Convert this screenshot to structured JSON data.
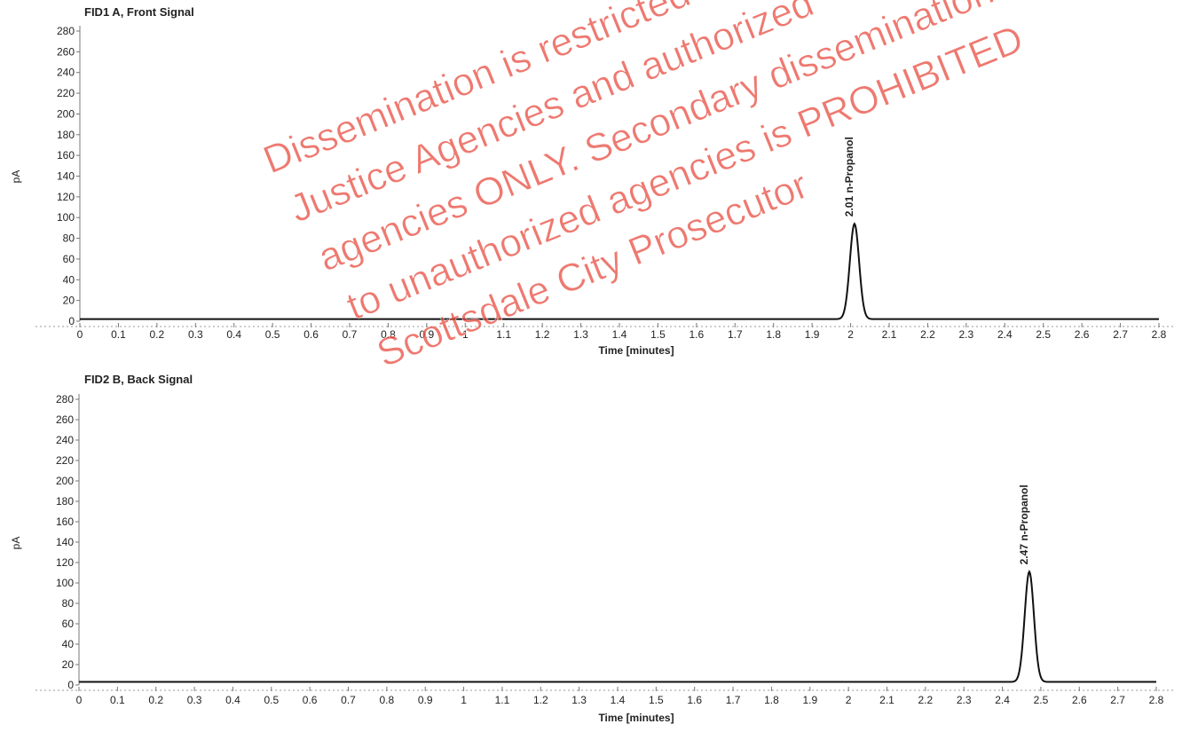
{
  "chart_data": [
    {
      "type": "line",
      "title": "FID1 A, Front Signal",
      "xlabel": "Time [minutes]",
      "ylabel": "pA",
      "xlim": [
        0,
        2.8
      ],
      "ylim": [
        0,
        280
      ],
      "xticks": [
        "0",
        "0.1",
        "0.2",
        "0.3",
        "0.4",
        "0.5",
        "0.6",
        "0.7",
        "0.8",
        "0.9",
        "1",
        "1.1",
        "1.2",
        "1.3",
        "1.4",
        "1.5",
        "1.6",
        "1.7",
        "1.8",
        "1.9",
        "2",
        "2.1",
        "2.2",
        "2.3",
        "2.4",
        "2.5",
        "2.6",
        "2.7",
        "2.8"
      ],
      "yticks": [
        "0",
        "20",
        "40",
        "60",
        "80",
        "100",
        "120",
        "140",
        "160",
        "180",
        "200",
        "220",
        "240",
        "260",
        "280"
      ],
      "baseline": 2,
      "peak": {
        "time": 2.01,
        "height": 92,
        "label": "2.01  n-Propanol"
      },
      "color": "#111111"
    },
    {
      "type": "line",
      "title": "FID2 B, Back Signal",
      "xlabel": "Time [minutes]",
      "ylabel": "pA",
      "xlim": [
        0,
        2.8
      ],
      "ylim": [
        0,
        280
      ],
      "xticks": [
        "0",
        "0.1",
        "0.2",
        "0.3",
        "0.4",
        "0.5",
        "0.6",
        "0.7",
        "0.8",
        "0.9",
        "1",
        "1.1",
        "1.2",
        "1.3",
        "1.4",
        "1.5",
        "1.6",
        "1.7",
        "1.8",
        "1.9",
        "2",
        "2.1",
        "2.2",
        "2.3",
        "2.4",
        "2.5",
        "2.6",
        "2.7",
        "2.8"
      ],
      "yticks": [
        "0",
        "20",
        "40",
        "60",
        "80",
        "100",
        "120",
        "140",
        "160",
        "180",
        "200",
        "220",
        "240",
        "260",
        "280"
      ],
      "baseline": 3,
      "peak": {
        "time": 2.47,
        "height": 108,
        "label": "2.47  n-Propanol"
      },
      "color": "#111111"
    }
  ],
  "watermark": {
    "lines": [
      "Dissemination is restricted to Criminal",
      "Justice Agencies and authorized",
      "agencies ONLY. Secondary dissemination",
      "to unauthorized agencies is PROHIBITED",
      "Scottsdale City Prosecutor"
    ],
    "color": "#e8463a"
  }
}
